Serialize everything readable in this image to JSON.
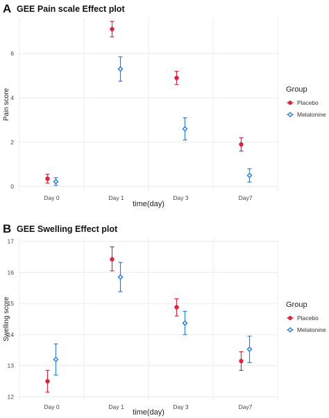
{
  "chart_data": [
    {
      "panel": "A",
      "type": "scatter",
      "title": "GEE Pain scale Effect plot",
      "xlabel": "time(day)",
      "ylabel": "Pain score",
      "categories": [
        "Day 0",
        "Day 1",
        "Day 3",
        "Day7"
      ],
      "ylim": [
        -0.2,
        7.6
      ],
      "yticks": [
        0,
        2,
        4,
        6
      ],
      "grid": true,
      "legend": {
        "title": "Group",
        "position": "right"
      },
      "series": [
        {
          "name": "Placebo",
          "color": "#d7263d",
          "marker": "circle",
          "values": [
            0.35,
            7.1,
            4.9,
            1.9
          ],
          "lower": [
            0.15,
            6.75,
            4.6,
            1.6
          ],
          "upper": [
            0.55,
            7.45,
            5.2,
            2.2
          ]
        },
        {
          "name": "Melatonine",
          "color": "#2a7fd4",
          "marker": "diamond",
          "values": [
            0.22,
            5.3,
            2.6,
            0.5
          ],
          "lower": [
            0.05,
            4.75,
            2.1,
            0.2
          ],
          "upper": [
            0.4,
            5.85,
            3.1,
            0.8
          ]
        }
      ]
    },
    {
      "panel": "B",
      "type": "scatter",
      "title": "GEE Swelling Effect plot",
      "xlabel": "time(day)",
      "ylabel": "Swelling score",
      "categories": [
        "Day 0",
        "Day 1",
        "Day 3",
        "Day7"
      ],
      "ylim": [
        11.9,
        17.1
      ],
      "yticks": [
        12,
        13,
        14,
        15,
        16,
        17
      ],
      "grid": true,
      "legend": {
        "title": "Group",
        "position": "right"
      },
      "series": [
        {
          "name": "Placebo",
          "color": "#d7263d",
          "marker": "circle",
          "values": [
            12.5,
            16.42,
            14.88,
            13.15
          ],
          "lower": [
            12.15,
            16.05,
            14.6,
            12.85
          ],
          "upper": [
            12.85,
            16.82,
            15.15,
            13.45
          ]
        },
        {
          "name": "Melatonine",
          "color": "#2a7fd4",
          "marker": "diamond",
          "values": [
            13.2,
            15.85,
            14.37,
            13.53
          ],
          "lower": [
            12.7,
            15.38,
            14.0,
            13.1
          ],
          "upper": [
            13.7,
            16.32,
            14.75,
            13.95
          ]
        }
      ]
    }
  ]
}
